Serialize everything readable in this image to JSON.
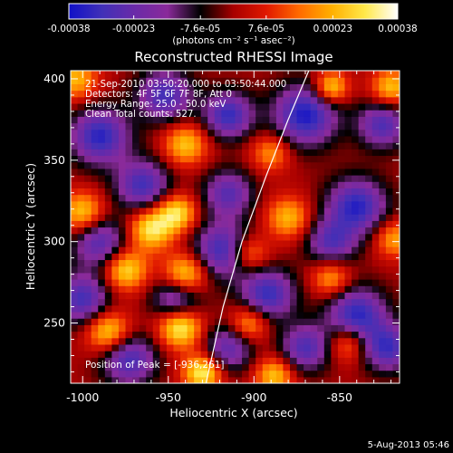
{
  "chart_data": {
    "type": "heatmap",
    "title": "Reconstructed RHESSI Image",
    "xlabel": "Heliocentric X (arcsec)",
    "ylabel": "Heliocentric Y (arcsec)",
    "xlim": [
      -1007,
      -815
    ],
    "ylim": [
      213,
      405
    ],
    "x_ticks": [
      -1000,
      -950,
      -900,
      -850
    ],
    "x_tick_labels": [
      "-1000",
      "-950",
      "-900",
      "-850"
    ],
    "y_ticks": [
      250,
      300,
      350,
      400
    ],
    "y_tick_labels": [
      "250",
      "300",
      "350",
      "400"
    ],
    "colorbar": {
      "min": -0.00038,
      "max": 0.00038,
      "ticks": [
        -0.00038,
        -0.00023,
        -7.6e-05,
        7.6e-05,
        0.00023,
        0.00038
      ],
      "tick_labels": [
        "-0.00038",
        "-0.00023",
        "-7.6e-05",
        "7.6e-05",
        "0.00023",
        "0.00038"
      ],
      "unit_label": "(photons cm⁻² s⁻¹ asec⁻²)",
      "colormap": [
        "#1010c8",
        "#4030b8",
        "#6a2aa8",
        "#8a2a9a",
        "#000000",
        "#a80000",
        "#e01800",
        "#ff6a00",
        "#ffb000",
        "#ffe84a",
        "#ffffff"
      ]
    },
    "annotations": [
      "21-Sep-2010 03:50:20.000 to 03:50:44.000",
      "Detectors: 4F 5F 6F 7F 8F, Att 0",
      "Energy Range: 25.0 - 50.0 keV",
      "Clean    Total counts: 527."
    ],
    "peak_label": "Position of Peak = [-936,261]",
    "peak": [
      -936,
      261
    ],
    "limb_curve": [
      [
        -928,
        213
      ],
      [
        -918,
        260
      ],
      [
        -907,
        300
      ],
      [
        -893,
        340
      ],
      [
        -880,
        375
      ],
      [
        -868,
        405
      ]
    ],
    "sources": [
      {
        "x": -990,
        "y": 365,
        "s": 12,
        "v": -0.00034
      },
      {
        "x": -952,
        "y": 390,
        "s": 11,
        "v": -0.0003
      },
      {
        "x": -915,
        "y": 378,
        "s": 10,
        "v": -0.00032
      },
      {
        "x": -870,
        "y": 378,
        "s": 13,
        "v": -0.00036
      },
      {
        "x": -825,
        "y": 372,
        "s": 10,
        "v": -0.00028
      },
      {
        "x": -965,
        "y": 335,
        "s": 11,
        "v": -0.0003
      },
      {
        "x": -915,
        "y": 330,
        "s": 10,
        "v": -0.00026
      },
      {
        "x": -840,
        "y": 322,
        "s": 12,
        "v": -0.00034
      },
      {
        "x": -990,
        "y": 300,
        "s": 11,
        "v": -0.00028
      },
      {
        "x": -918,
        "y": 295,
        "s": 12,
        "v": -0.00032
      },
      {
        "x": -855,
        "y": 300,
        "s": 10,
        "v": -0.00026
      },
      {
        "x": -1000,
        "y": 265,
        "s": 11,
        "v": -0.0003
      },
      {
        "x": -945,
        "y": 265,
        "s": 10,
        "v": -0.00028
      },
      {
        "x": -892,
        "y": 268,
        "s": 11,
        "v": -0.00032
      },
      {
        "x": -840,
        "y": 255,
        "s": 12,
        "v": -0.00034
      },
      {
        "x": -973,
        "y": 228,
        "s": 11,
        "v": -0.0003
      },
      {
        "x": -915,
        "y": 235,
        "s": 10,
        "v": -0.00026
      },
      {
        "x": -870,
        "y": 235,
        "s": 10,
        "v": -0.00028
      },
      {
        "x": -822,
        "y": 235,
        "s": 10,
        "v": -0.0003
      },
      {
        "x": -1004,
        "y": 400,
        "s": 9,
        "v": 0.00024
      },
      {
        "x": -940,
        "y": 360,
        "s": 9,
        "v": 0.00026
      },
      {
        "x": -890,
        "y": 355,
        "s": 8,
        "v": 0.0002
      },
      {
        "x": -855,
        "y": 395,
        "s": 7,
        "v": 0.0003
      },
      {
        "x": -820,
        "y": 395,
        "s": 8,
        "v": 0.00026
      },
      {
        "x": -1000,
        "y": 318,
        "s": 9,
        "v": 0.00028
      },
      {
        "x": -960,
        "y": 308,
        "s": 9,
        "v": 0.00032
      },
      {
        "x": -945,
        "y": 318,
        "s": 8,
        "v": 0.0003
      },
      {
        "x": -880,
        "y": 315,
        "s": 9,
        "v": 0.00024
      },
      {
        "x": -818,
        "y": 302,
        "s": 8,
        "v": 0.00022
      },
      {
        "x": -975,
        "y": 283,
        "s": 9,
        "v": 0.0003
      },
      {
        "x": -940,
        "y": 280,
        "s": 9,
        "v": 0.00032
      },
      {
        "x": -903,
        "y": 293,
        "s": 8,
        "v": 0.00024
      },
      {
        "x": -855,
        "y": 278,
        "s": 8,
        "v": 0.00022
      },
      {
        "x": -985,
        "y": 245,
        "s": 9,
        "v": 0.0003
      },
      {
        "x": -943,
        "y": 248,
        "s": 9,
        "v": 0.00036
      },
      {
        "x": -903,
        "y": 250,
        "s": 8,
        "v": 0.00024
      },
      {
        "x": -845,
        "y": 238,
        "s": 8,
        "v": 0.00022
      },
      {
        "x": -930,
        "y": 220,
        "s": 8,
        "v": 0.00034
      },
      {
        "x": -888,
        "y": 218,
        "s": 8,
        "v": 0.00026
      }
    ]
  },
  "footer": {
    "date": "5-Aug-2013 05:46"
  }
}
